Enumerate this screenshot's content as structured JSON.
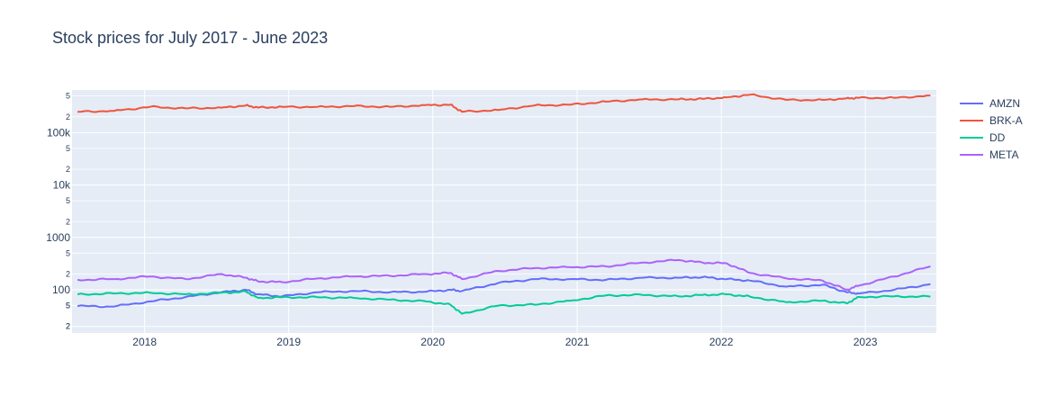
{
  "chart_data": {
    "type": "line",
    "title": "Stock prices for July 2017 - June 2023",
    "xlabel": "",
    "ylabel": "",
    "y_scale": "log",
    "ylim": [
      15,
      650000
    ],
    "xlim": [
      "2017-07-01",
      "2023-06-30"
    ],
    "x_ticks": [
      "2018",
      "2019",
      "2020",
      "2021",
      "2022",
      "2023"
    ],
    "y_major_ticks": [
      "100",
      "1000",
      "10k",
      "100k"
    ],
    "y_minor_labels": [
      "2",
      "5"
    ],
    "grid": true,
    "legend": "right",
    "x": [
      "2017-07",
      "2017-10",
      "2018-01",
      "2018-04",
      "2018-07",
      "2018-09",
      "2018-10",
      "2018-12",
      "2019-03",
      "2019-06",
      "2019-09",
      "2019-12",
      "2020-02",
      "2020-03",
      "2020-06",
      "2020-09",
      "2020-12",
      "2021-03",
      "2021-06",
      "2021-09",
      "2021-11",
      "2022-01",
      "2022-03",
      "2022-06",
      "2022-09",
      "2022-11",
      "2022-12",
      "2023-03",
      "2023-06"
    ],
    "series": [
      {
        "name": "AMZN",
        "color": "#636efa",
        "values": [
          49,
          48,
          60,
          73,
          90,
          100,
          82,
          75,
          90,
          95,
          90,
          92,
          100,
          95,
          135,
          160,
          160,
          155,
          170,
          170,
          175,
          160,
          150,
          115,
          125,
          90,
          85,
          100,
          128
        ]
      },
      {
        "name": "BRK-A",
        "color": "#ef553b",
        "values": [
          250000,
          260000,
          310000,
          290000,
          300000,
          330000,
          300000,
          310000,
          310000,
          320000,
          310000,
          335000,
          340000,
          250000,
          270000,
          330000,
          340000,
          390000,
          430000,
          430000,
          440000,
          470000,
          530000,
          420000,
          420000,
          450000,
          460000,
          460000,
          510000
        ]
      },
      {
        "name": "DD",
        "color": "#00cc96",
        "values": [
          82,
          85,
          88,
          82,
          88,
          92,
          70,
          72,
          72,
          70,
          65,
          60,
          52,
          35,
          50,
          52,
          62,
          78,
          80,
          75,
          80,
          82,
          74,
          58,
          62,
          55,
          73,
          75,
          74
        ]
      },
      {
        "name": "META",
        "color": "#ab63fa",
        "values": [
          155,
          160,
          180,
          160,
          200,
          170,
          145,
          140,
          165,
          180,
          185,
          200,
          210,
          160,
          230,
          260,
          270,
          280,
          330,
          370,
          330,
          320,
          210,
          165,
          150,
          100,
          120,
          180,
          280
        ]
      }
    ]
  }
}
